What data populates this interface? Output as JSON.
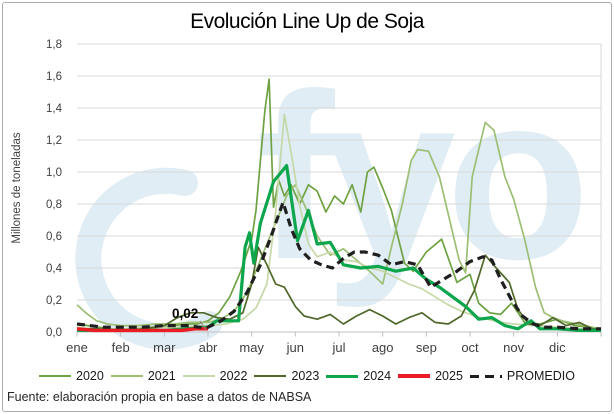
{
  "title": "Evolución Line Up de Soja",
  "footer": {
    "source": "Fuente: elaboración propia en base a datos de NABSA"
  },
  "watermark": {
    "text": "fyo",
    "color": "#e0edf5"
  },
  "chart_data": {
    "type": "line",
    "title": "Evolución Line Up de Soja",
    "xlabel": "",
    "ylabel": "Millones de toneladas",
    "x_categories": [
      "ene",
      "feb",
      "mar",
      "abr",
      "may",
      "jun",
      "jul",
      "ago",
      "sep",
      "oct",
      "nov",
      "dic"
    ],
    "xlim": [
      0,
      12
    ],
    "ylim": [
      0,
      1.8
    ],
    "y_ticks": [
      "0,0",
      "0,2",
      "0,4",
      "0,6",
      "0,8",
      "1,0",
      "1,2",
      "1,4",
      "1,6",
      "1,8"
    ],
    "y_tick_values": [
      0,
      0.2,
      0.4,
      0.6,
      0.8,
      1.0,
      1.2,
      1.4,
      1.6,
      1.8
    ],
    "grid": "horizontal",
    "grid_color": "#d9d9d9",
    "axis_text_color": "#404040",
    "legend_position": "bottom",
    "annotation": {
      "text": "0,02",
      "series": "2025",
      "x": 3,
      "y": 0.02
    },
    "series": [
      {
        "name": "2020",
        "color": "#6fa243",
        "width": 1.7,
        "dash": null,
        "points": [
          [
            0,
            0.05
          ],
          [
            0.25,
            0.04
          ],
          [
            0.5,
            0.03
          ],
          [
            0.75,
            0.02
          ],
          [
            1,
            0.02
          ],
          [
            1.3,
            0.02
          ],
          [
            1.6,
            0.02
          ],
          [
            1.9,
            0.03
          ],
          [
            2.2,
            0.04
          ],
          [
            2.5,
            0.05
          ],
          [
            2.75,
            0.05
          ],
          [
            3,
            0.07
          ],
          [
            3.25,
            0.12
          ],
          [
            3.5,
            0.22
          ],
          [
            3.75,
            0.38
          ],
          [
            4,
            0.58
          ],
          [
            4.1,
            0.76
          ],
          [
            4.2,
            1.07
          ],
          [
            4.3,
            1.38
          ],
          [
            4.4,
            1.58
          ],
          [
            4.5,
            0.78
          ],
          [
            4.62,
            0.95
          ],
          [
            4.75,
            0.85
          ],
          [
            4.9,
            0.92
          ],
          [
            5.1,
            0.8
          ],
          [
            5.3,
            0.92
          ],
          [
            5.5,
            0.88
          ],
          [
            5.7,
            0.75
          ],
          [
            5.9,
            0.85
          ],
          [
            6.1,
            0.8
          ],
          [
            6.3,
            0.92
          ],
          [
            6.5,
            0.75
          ],
          [
            6.65,
            1.0
          ],
          [
            6.8,
            1.03
          ],
          [
            7,
            0.9
          ],
          [
            7.2,
            0.76
          ],
          [
            7.5,
            0.43
          ],
          [
            7.7,
            0.38
          ],
          [
            8,
            0.5
          ],
          [
            8.35,
            0.58
          ],
          [
            8.7,
            0.31
          ],
          [
            9,
            0.36
          ],
          [
            9.2,
            0.18
          ],
          [
            9.45,
            0.12
          ],
          [
            9.7,
            0.11
          ],
          [
            9.95,
            0.18
          ],
          [
            10.25,
            0.06
          ],
          [
            10.6,
            0.05
          ],
          [
            11,
            0.08
          ],
          [
            11.4,
            0.04
          ],
          [
            11.7,
            0.03
          ],
          [
            12,
            0.02
          ]
        ]
      },
      {
        "name": "2021",
        "color": "#9cbf74",
        "width": 1.7,
        "dash": null,
        "points": [
          [
            0,
            0.17
          ],
          [
            0.2,
            0.12
          ],
          [
            0.45,
            0.07
          ],
          [
            0.7,
            0.05
          ],
          [
            1,
            0.04
          ],
          [
            1.4,
            0.04
          ],
          [
            1.8,
            0.05
          ],
          [
            2.2,
            0.05
          ],
          [
            2.6,
            0.06
          ],
          [
            3,
            0.06
          ],
          [
            3.3,
            0.08
          ],
          [
            3.6,
            0.13
          ],
          [
            3.9,
            0.25
          ],
          [
            4.2,
            0.45
          ],
          [
            4.5,
            0.65
          ],
          [
            4.8,
            0.85
          ],
          [
            5,
            0.92
          ],
          [
            5.2,
            0.8
          ],
          [
            5.5,
            0.6
          ],
          [
            5.8,
            0.48
          ],
          [
            6.1,
            0.52
          ],
          [
            6.4,
            0.45
          ],
          [
            6.7,
            0.38
          ],
          [
            7,
            0.3
          ],
          [
            7.2,
            0.53
          ],
          [
            7.45,
            0.8
          ],
          [
            7.65,
            1.07
          ],
          [
            7.8,
            1.14
          ],
          [
            8.05,
            1.13
          ],
          [
            8.3,
            0.97
          ],
          [
            8.55,
            0.68
          ],
          [
            8.75,
            0.45
          ],
          [
            8.9,
            0.37
          ],
          [
            9.05,
            0.97
          ],
          [
            9.2,
            1.14
          ],
          [
            9.35,
            1.31
          ],
          [
            9.55,
            1.26
          ],
          [
            9.8,
            0.97
          ],
          [
            10,
            0.83
          ],
          [
            10.25,
            0.58
          ],
          [
            10.5,
            0.28
          ],
          [
            10.7,
            0.12
          ],
          [
            10.9,
            0.09
          ],
          [
            11.1,
            0.07
          ],
          [
            11.45,
            0.05
          ],
          [
            11.8,
            0.03
          ],
          [
            12,
            0.02
          ]
        ]
      },
      {
        "name": "2022",
        "color": "#c6d8a7",
        "width": 1.7,
        "dash": null,
        "points": [
          [
            0,
            0.03
          ],
          [
            0.4,
            0.02
          ],
          [
            0.8,
            0.02
          ],
          [
            1.2,
            0.02
          ],
          [
            1.6,
            0.03
          ],
          [
            2,
            0.03
          ],
          [
            2.5,
            0.03
          ],
          [
            3,
            0.04
          ],
          [
            3.4,
            0.05
          ],
          [
            3.8,
            0.08
          ],
          [
            4.1,
            0.15
          ],
          [
            4.35,
            0.3
          ],
          [
            4.55,
            0.75
          ],
          [
            4.75,
            1.36
          ],
          [
            4.95,
            1.05
          ],
          [
            5.1,
            0.79
          ],
          [
            5.3,
            0.55
          ],
          [
            5.5,
            0.47
          ],
          [
            5.8,
            0.5
          ],
          [
            6.1,
            0.45
          ],
          [
            6.4,
            0.44
          ],
          [
            6.7,
            0.4
          ],
          [
            7,
            0.38
          ],
          [
            7.3,
            0.34
          ],
          [
            7.6,
            0.3
          ],
          [
            7.9,
            0.27
          ],
          [
            8.2,
            0.22
          ],
          [
            8.5,
            0.17
          ],
          [
            8.8,
            0.13
          ],
          [
            9.1,
            0.1
          ],
          [
            9.4,
            0.08
          ],
          [
            9.7,
            0.06
          ],
          [
            10,
            0.05
          ],
          [
            10.5,
            0.04
          ],
          [
            11,
            0.03
          ],
          [
            11.5,
            0.02
          ],
          [
            12,
            0.02
          ]
        ]
      },
      {
        "name": "2023",
        "color": "#50682b",
        "width": 1.7,
        "dash": null,
        "points": [
          [
            0,
            0.02
          ],
          [
            0.5,
            0.02
          ],
          [
            1,
            0.01
          ],
          [
            1.5,
            0.02
          ],
          [
            2,
            0.04
          ],
          [
            2.3,
            0.09
          ],
          [
            2.6,
            0.12
          ],
          [
            2.9,
            0.12
          ],
          [
            3.2,
            0.09
          ],
          [
            3.5,
            0.08
          ],
          [
            3.8,
            0.12
          ],
          [
            4,
            0.3
          ],
          [
            4.15,
            0.53
          ],
          [
            4.35,
            0.42
          ],
          [
            4.55,
            0.3
          ],
          [
            4.75,
            0.28
          ],
          [
            5,
            0.16
          ],
          [
            5.2,
            0.1
          ],
          [
            5.5,
            0.08
          ],
          [
            5.8,
            0.11
          ],
          [
            6.1,
            0.05
          ],
          [
            6.4,
            0.1
          ],
          [
            6.7,
            0.14
          ],
          [
            7,
            0.1
          ],
          [
            7.3,
            0.05
          ],
          [
            7.6,
            0.09
          ],
          [
            7.9,
            0.12
          ],
          [
            8.2,
            0.06
          ],
          [
            8.5,
            0.05
          ],
          [
            8.8,
            0.1
          ],
          [
            9.1,
            0.26
          ],
          [
            9.35,
            0.48
          ],
          [
            9.6,
            0.4
          ],
          [
            9.9,
            0.31
          ],
          [
            10.1,
            0.14
          ],
          [
            10.35,
            0.05
          ],
          [
            10.6,
            0.04
          ],
          [
            10.9,
            0.09
          ],
          [
            11.2,
            0.04
          ],
          [
            11.5,
            0.06
          ],
          [
            11.8,
            0.02
          ],
          [
            12,
            0.02
          ]
        ]
      },
      {
        "name": "2024",
        "color": "#0da64d",
        "width": 3.2,
        "dash": null,
        "points": [
          [
            0,
            0.01
          ],
          [
            0.5,
            0.01
          ],
          [
            1,
            0.01
          ],
          [
            1.5,
            0.01
          ],
          [
            2,
            0.01
          ],
          [
            2.5,
            0.02
          ],
          [
            3,
            0.03
          ],
          [
            3.2,
            0.07
          ],
          [
            3.7,
            0.07
          ],
          [
            3.85,
            0.53
          ],
          [
            3.95,
            0.62
          ],
          [
            4.05,
            0.43
          ],
          [
            4.2,
            0.68
          ],
          [
            4.5,
            0.94
          ],
          [
            4.8,
            1.04
          ],
          [
            5.05,
            0.57
          ],
          [
            5.3,
            0.76
          ],
          [
            5.5,
            0.55
          ],
          [
            5.8,
            0.56
          ],
          [
            6.1,
            0.42
          ],
          [
            6.5,
            0.4
          ],
          [
            6.9,
            0.41
          ],
          [
            7.3,
            0.38
          ],
          [
            7.7,
            0.4
          ],
          [
            8,
            0.33
          ],
          [
            8.3,
            0.28
          ],
          [
            8.6,
            0.22
          ],
          [
            8.9,
            0.16
          ],
          [
            9.2,
            0.08
          ],
          [
            9.5,
            0.09
          ],
          [
            9.8,
            0.04
          ],
          [
            10.1,
            0.02
          ],
          [
            10.4,
            0.07
          ],
          [
            10.6,
            0.02
          ],
          [
            11,
            0.02
          ],
          [
            11.5,
            0.01
          ],
          [
            12,
            0.01
          ]
        ]
      },
      {
        "name": "2025",
        "color": "#ec1c24",
        "width": 3.4,
        "dash": null,
        "points": [
          [
            0,
            0.02
          ],
          [
            0.4,
            0.01
          ],
          [
            0.8,
            0.01
          ],
          [
            1.2,
            0.01
          ],
          [
            1.6,
            0.01
          ],
          [
            2,
            0.01
          ],
          [
            2.4,
            0.01
          ],
          [
            2.7,
            0.02
          ],
          [
            3,
            0.02
          ]
        ]
      },
      {
        "name": "PROMEDIO",
        "color": "#1f1f1f",
        "width": 3.2,
        "dash": "8 5",
        "points": [
          [
            0,
            0.05
          ],
          [
            0.3,
            0.04
          ],
          [
            0.6,
            0.03
          ],
          [
            1,
            0.03
          ],
          [
            1.5,
            0.03
          ],
          [
            2,
            0.04
          ],
          [
            2.5,
            0.04
          ],
          [
            2.8,
            0.03
          ],
          [
            3,
            0.03
          ],
          [
            3.3,
            0.07
          ],
          [
            3.6,
            0.13
          ],
          [
            3.9,
            0.25
          ],
          [
            4.2,
            0.42
          ],
          [
            4.45,
            0.6
          ],
          [
            4.6,
            0.72
          ],
          [
            4.72,
            0.81
          ],
          [
            4.9,
            0.65
          ],
          [
            5.1,
            0.52
          ],
          [
            5.35,
            0.45
          ],
          [
            5.6,
            0.42
          ],
          [
            5.85,
            0.4
          ],
          [
            6.1,
            0.46
          ],
          [
            6.35,
            0.5
          ],
          [
            6.6,
            0.5
          ],
          [
            6.9,
            0.48
          ],
          [
            7.2,
            0.42
          ],
          [
            7.5,
            0.44
          ],
          [
            7.8,
            0.42
          ],
          [
            8.1,
            0.28
          ],
          [
            8.4,
            0.33
          ],
          [
            8.7,
            0.38
          ],
          [
            9,
            0.44
          ],
          [
            9.3,
            0.47
          ],
          [
            9.5,
            0.45
          ],
          [
            9.7,
            0.33
          ],
          [
            9.95,
            0.2
          ],
          [
            10.2,
            0.1
          ],
          [
            10.45,
            0.05
          ],
          [
            10.7,
            0.03
          ],
          [
            11,
            0.03
          ],
          [
            11.5,
            0.02
          ],
          [
            12,
            0.02
          ]
        ]
      }
    ]
  }
}
